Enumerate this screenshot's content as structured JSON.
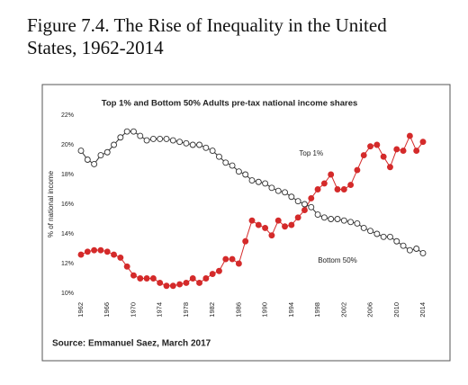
{
  "figure_title": "Figure 7.4. The Rise of Inequality in the United States, 1962-2014",
  "chart_data": {
    "type": "line",
    "title": "Top 1% and Bottom 50% Adults pre-tax national income shares",
    "ylabel": "% of national income",
    "source": "Source: Emmanuel Saez, March 2017",
    "x": [
      1962,
      1963,
      1964,
      1965,
      1966,
      1967,
      1968,
      1969,
      1970,
      1971,
      1972,
      1973,
      1974,
      1975,
      1976,
      1977,
      1978,
      1979,
      1980,
      1981,
      1982,
      1983,
      1984,
      1985,
      1986,
      1987,
      1988,
      1989,
      1990,
      1991,
      1992,
      1993,
      1994,
      1995,
      1996,
      1997,
      1998,
      1999,
      2000,
      2001,
      2002,
      2003,
      2004,
      2005,
      2006,
      2007,
      2008,
      2009,
      2010,
      2011,
      2012,
      2013,
      2014
    ],
    "series": [
      {
        "name": "Top 1%",
        "color": "#d42a2a",
        "marker_fill": "#d42a2a",
        "values": [
          12.6,
          12.8,
          12.9,
          12.9,
          12.8,
          12.6,
          12.4,
          11.8,
          11.2,
          11.0,
          11.0,
          11.0,
          10.7,
          10.5,
          10.5,
          10.6,
          10.7,
          11.0,
          10.7,
          11.0,
          11.3,
          11.5,
          12.3,
          12.3,
          12.0,
          13.5,
          14.9,
          14.6,
          14.4,
          13.9,
          14.9,
          14.5,
          14.6,
          15.1,
          15.6,
          16.4,
          17.0,
          17.4,
          18.0,
          17.0,
          17.0,
          17.3,
          18.3,
          19.3,
          19.9,
          20.0,
          19.2,
          18.5,
          19.7,
          19.6,
          20.6,
          19.6,
          20.2
        ]
      },
      {
        "name": "Bottom 50%",
        "color": "#333333",
        "marker_fill": "#ffffff",
        "values": [
          19.6,
          19.0,
          18.7,
          19.3,
          19.5,
          20.0,
          20.5,
          20.9,
          20.9,
          20.6,
          20.3,
          20.4,
          20.4,
          20.4,
          20.3,
          20.2,
          20.1,
          20.0,
          20.0,
          19.8,
          19.6,
          19.2,
          18.8,
          18.6,
          18.2,
          18.0,
          17.6,
          17.5,
          17.4,
          17.1,
          16.9,
          16.8,
          16.5,
          16.2,
          16.0,
          15.8,
          15.3,
          15.1,
          15.0,
          15.0,
          14.9,
          14.8,
          14.7,
          14.4,
          14.2,
          14.0,
          13.8,
          13.8,
          13.5,
          13.2,
          12.9,
          13.0,
          12.7
        ]
      }
    ],
    "label_positions": [
      [
        1997,
        19.4
      ],
      [
        2001,
        12.2
      ]
    ],
    "xlim": [
      1962,
      2014
    ],
    "xticks": [
      1962,
      1966,
      1970,
      1974,
      1978,
      1982,
      1986,
      1990,
      1994,
      1998,
      2002,
      2006,
      2010,
      2014
    ],
    "ylim": [
      10,
      22
    ],
    "yticks": [
      {
        "value": 10,
        "label": "10%"
      },
      {
        "value": 12,
        "label": "12%"
      },
      {
        "value": 14,
        "label": "14%"
      },
      {
        "value": 16,
        "label": "16%"
      },
      {
        "value": 18,
        "label": "18%"
      },
      {
        "value": 20,
        "label": "20%"
      },
      {
        "value": 22,
        "label": "22%"
      }
    ],
    "grid": false
  }
}
